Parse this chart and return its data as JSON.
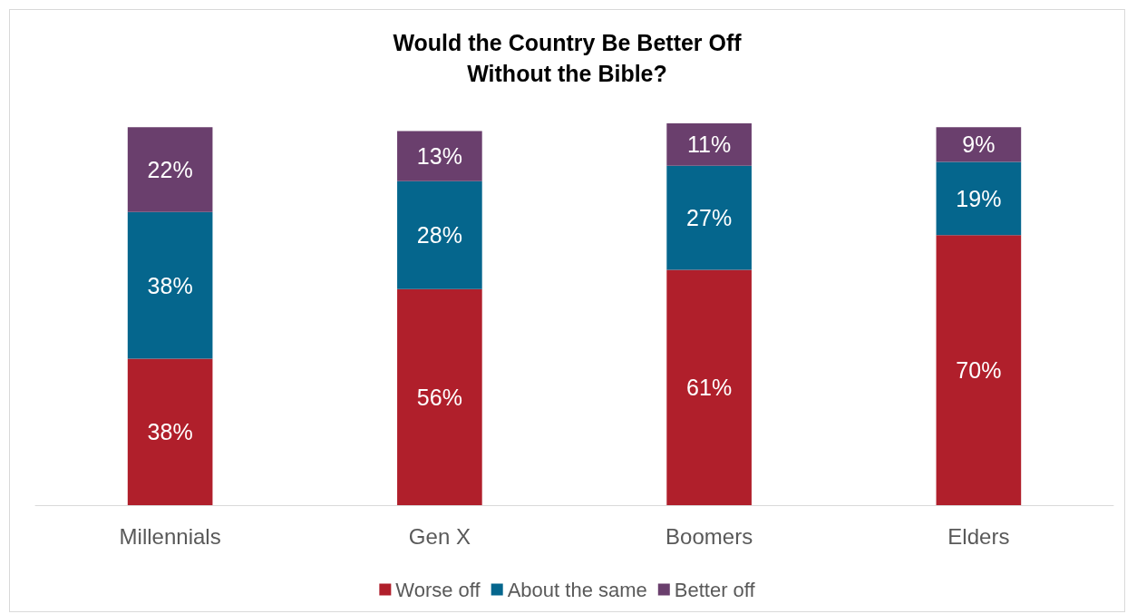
{
  "chart_data": {
    "type": "bar",
    "title": "Would the Country Be Better Off\nWithout the Bible?",
    "categories": [
      "Millennials",
      "Gen X",
      "Boomers",
      "Elders"
    ],
    "stacked": true,
    "tick_labels": "x",
    "grid": false,
    "legend": "bottom",
    "series": [
      {
        "name": "Worse off",
        "color": "#b01f2b",
        "values": [
          38,
          56,
          61,
          70
        ],
        "value_labels": [
          "38%",
          "56%",
          "61%",
          "70%"
        ]
      },
      {
        "name": "About the same",
        "color": "#05668d",
        "values": [
          38,
          28,
          27,
          19
        ],
        "value_labels": [
          "38%",
          "28%",
          "27%",
          "19%"
        ]
      },
      {
        "name": "Better off",
        "color": "#6a3f6d",
        "values": [
          22,
          13,
          11,
          9
        ],
        "value_labels": [
          "22%",
          "13%",
          "11%",
          "9%"
        ]
      }
    ]
  }
}
